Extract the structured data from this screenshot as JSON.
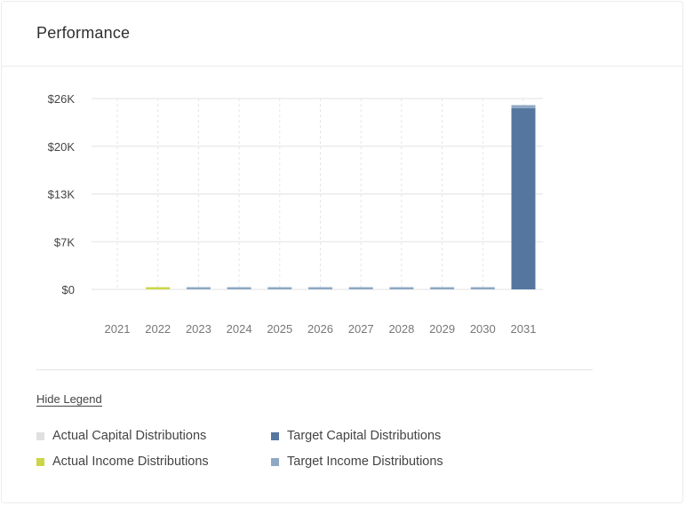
{
  "card": {
    "title": "Performance"
  },
  "legend": {
    "toggle_label": "Hide Legend",
    "items": [
      {
        "label": "Actual Capital Distributions",
        "color": "#e0e0e0"
      },
      {
        "label": "Target Capital Distributions",
        "color": "#55779f"
      },
      {
        "label": "Actual Income Distributions",
        "color": "#cbd647"
      },
      {
        "label": "Target Income Distributions",
        "color": "#8fa8c4"
      }
    ]
  },
  "chart_data": {
    "type": "bar",
    "stacked": true,
    "categories": [
      "2021",
      "2022",
      "2023",
      "2024",
      "2025",
      "2026",
      "2027",
      "2028",
      "2029",
      "2030",
      "2031"
    ],
    "yticks": [
      {
        "value": 0,
        "label": "$0"
      },
      {
        "value": 6500,
        "label": "$7K"
      },
      {
        "value": 13000,
        "label": "$13K"
      },
      {
        "value": 19500,
        "label": "$20K"
      },
      {
        "value": 26000,
        "label": "$26K"
      }
    ],
    "ylim": [
      0,
      26000
    ],
    "series": [
      {
        "name": "Actual Capital Distributions",
        "color": "#e0e0e0",
        "values": [
          0,
          0,
          0,
          0,
          0,
          0,
          0,
          0,
          0,
          0,
          0
        ]
      },
      {
        "name": "Actual Income Distributions",
        "color": "#cbd647",
        "values": [
          0,
          300,
          0,
          0,
          0,
          0,
          0,
          0,
          0,
          0,
          0
        ]
      },
      {
        "name": "Target Capital Distributions",
        "color": "#55779f",
        "values": [
          0,
          0,
          0,
          0,
          0,
          0,
          0,
          0,
          0,
          0,
          24700
        ]
      },
      {
        "name": "Target Income Distributions",
        "color": "#8fa8c4",
        "values": [
          0,
          0,
          300,
          300,
          300,
          300,
          300,
          300,
          300,
          300,
          400
        ]
      }
    ],
    "grid": true
  }
}
